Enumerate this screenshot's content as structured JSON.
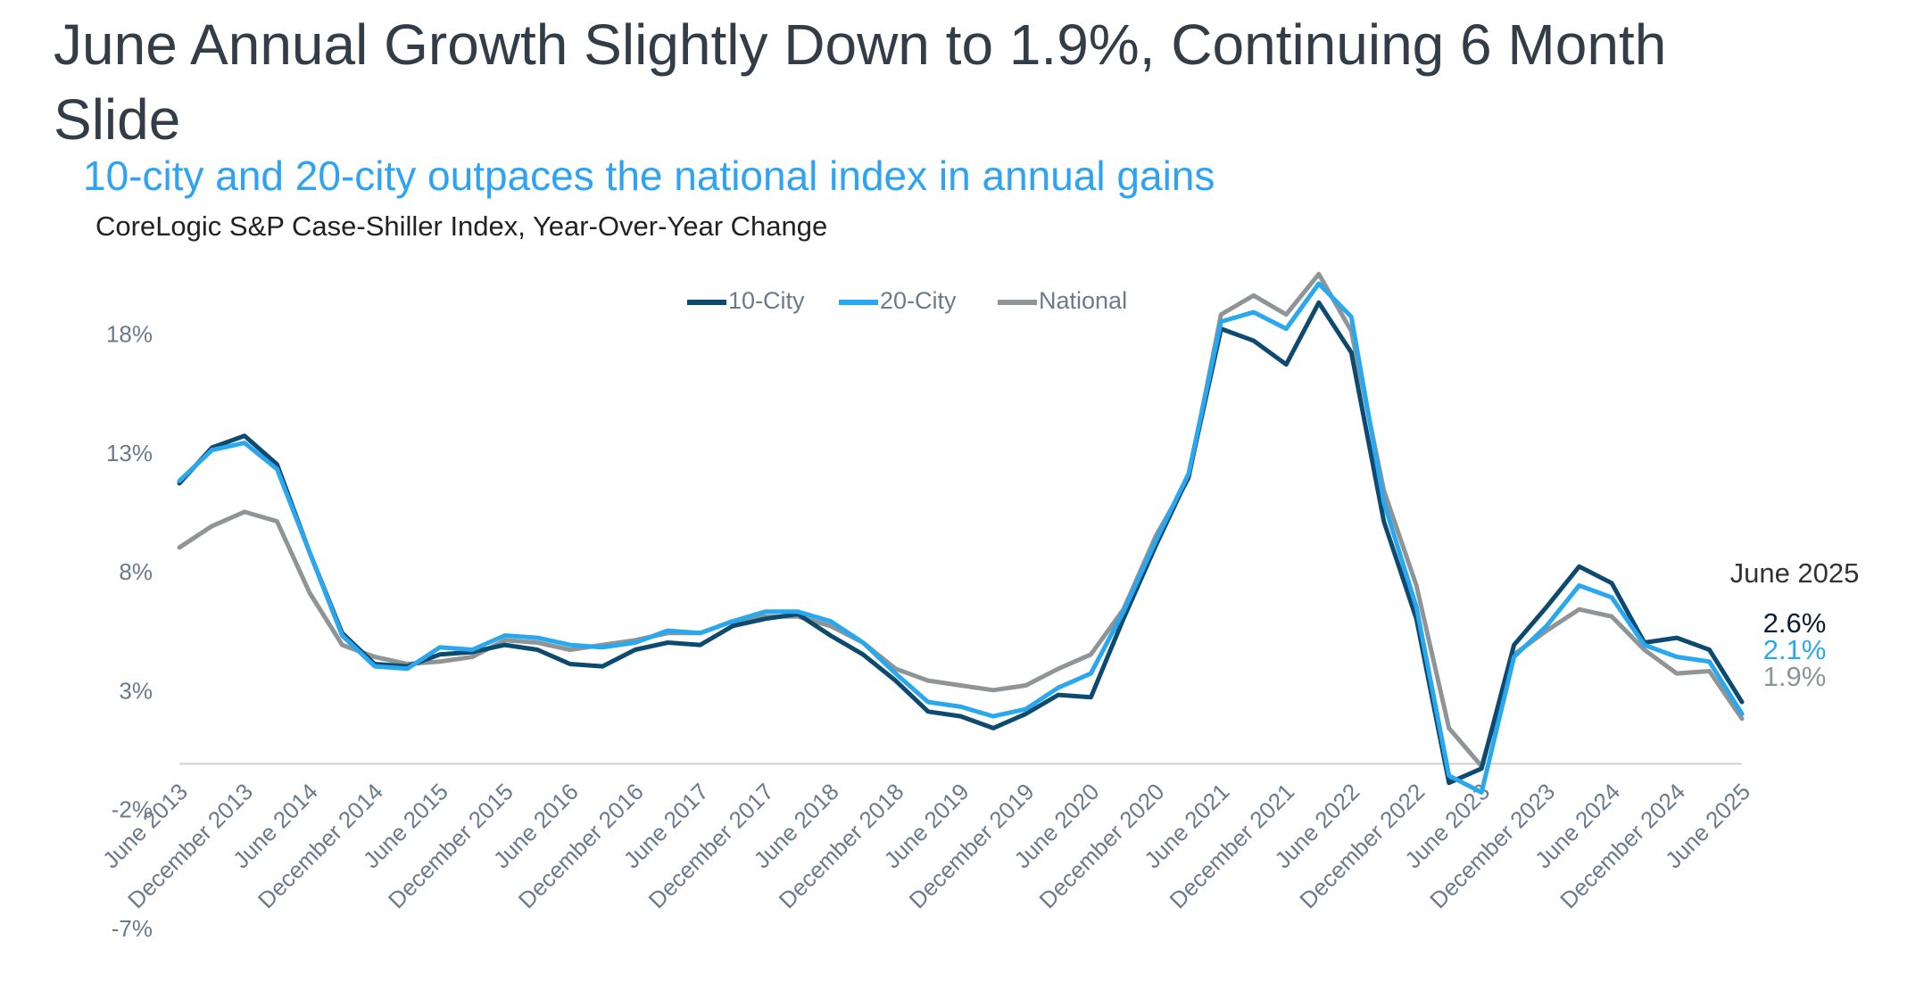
{
  "chart_data": {
    "type": "line",
    "title": "June Annual Growth Slightly Down to 1.9%, Continuing 6 Month Slide",
    "subtitle": "10-city and 20-city outpaces the national index in annual gains",
    "note": "CoreLogic S&P Case-Shiller Index, Year-Over-Year Change",
    "annotation": "June 2025",
    "categories": [
      "June 2013",
      null,
      "December 2013",
      null,
      "June 2014",
      null,
      "December 2014",
      null,
      "June 2015",
      null,
      "December 2015",
      null,
      "June 2016",
      null,
      "December 2016",
      null,
      "June 2017",
      null,
      "December 2017",
      null,
      "June 2018",
      null,
      "December 2018",
      null,
      "June 2019",
      null,
      "December 2019",
      null,
      "June 2020",
      null,
      "December 2020",
      null,
      "June 2021",
      null,
      "December 2021",
      null,
      "June 2022",
      null,
      "December 2022",
      null,
      "June 2023",
      null,
      "December 2023",
      null,
      "June 2024",
      null,
      "December 2024",
      null,
      "June 2025"
    ],
    "series": [
      {
        "name": "10-City",
        "color": "#0d4a70",
        "values": [
          11.8,
          13.3,
          13.8,
          12.6,
          8.9,
          5.5,
          4.2,
          4.1,
          4.6,
          4.7,
          5.0,
          4.8,
          4.2,
          4.1,
          4.8,
          5.1,
          5.0,
          5.8,
          6.1,
          6.3,
          5.4,
          4.6,
          3.5,
          2.2,
          2.0,
          1.5,
          2.1,
          2.9,
          2.8,
          6.1,
          9.2,
          12.1,
          18.3,
          17.8,
          16.8,
          19.4,
          17.3,
          10.2,
          6.1,
          -0.8,
          -0.2,
          5.0,
          6.6,
          8.3,
          7.6,
          5.1,
          5.3,
          4.8,
          2.6
        ],
        "value_labels": [
          null,
          null,
          null,
          null,
          null,
          null,
          null,
          null,
          null,
          null,
          null,
          null,
          null,
          null,
          null,
          null,
          null,
          null,
          null,
          null,
          null,
          null,
          null,
          null,
          null,
          null,
          null,
          null,
          null,
          null,
          null,
          null,
          null,
          null,
          null,
          null,
          null,
          null,
          null,
          null,
          null,
          null,
          null,
          null,
          null,
          null,
          null,
          null,
          "2.6%"
        ]
      },
      {
        "name": "20-City",
        "color": "#29a8ef",
        "values": [
          11.9,
          13.2,
          13.5,
          12.4,
          8.9,
          5.4,
          4.1,
          4.0,
          4.9,
          4.8,
          5.4,
          5.3,
          5.0,
          4.9,
          5.1,
          5.6,
          5.5,
          6.0,
          6.4,
          6.4,
          6.0,
          5.1,
          3.8,
          2.6,
          2.4,
          2.0,
          2.3,
          3.2,
          3.8,
          6.4,
          9.4,
          12.2,
          18.6,
          19.0,
          18.3,
          20.2,
          18.8,
          11.0,
          6.6,
          -0.5,
          -1.2,
          4.5,
          5.8,
          7.5,
          7.0,
          5.0,
          4.5,
          4.3,
          2.1
        ],
        "value_labels": [
          null,
          null,
          null,
          null,
          null,
          null,
          null,
          null,
          null,
          null,
          null,
          null,
          null,
          null,
          null,
          null,
          null,
          null,
          null,
          null,
          null,
          null,
          null,
          null,
          null,
          null,
          null,
          null,
          null,
          null,
          null,
          null,
          null,
          null,
          null,
          null,
          null,
          null,
          null,
          null,
          null,
          null,
          null,
          null,
          null,
          null,
          null,
          null,
          "2.1%"
        ]
      },
      {
        "name": "National",
        "color": "#8f9496",
        "values": [
          9.1,
          10.0,
          10.6,
          10.2,
          7.2,
          5.0,
          4.5,
          4.2,
          4.3,
          4.5,
          5.2,
          5.1,
          4.8,
          5.0,
          5.2,
          5.5,
          5.5,
          6.0,
          6.2,
          6.2,
          5.8,
          5.1,
          4.0,
          3.5,
          3.3,
          3.1,
          3.3,
          4.0,
          4.6,
          6.5,
          9.6,
          12.0,
          18.9,
          19.7,
          18.9,
          20.6,
          18.2,
          11.5,
          7.5,
          1.5,
          -0.1,
          4.6,
          5.6,
          6.5,
          6.2,
          4.8,
          3.8,
          3.9,
          1.9
        ],
        "value_labels": [
          null,
          null,
          null,
          null,
          null,
          null,
          null,
          null,
          null,
          null,
          null,
          null,
          null,
          null,
          null,
          null,
          null,
          null,
          null,
          null,
          null,
          null,
          null,
          null,
          null,
          null,
          null,
          null,
          null,
          null,
          null,
          null,
          null,
          null,
          null,
          null,
          null,
          null,
          null,
          null,
          null,
          null,
          null,
          null,
          null,
          null,
          null,
          null,
          "1.9%"
        ]
      }
    ],
    "ylim": [
      -7,
      22
    ],
    "yticks": [
      {
        "value": -7,
        "label": "-7%"
      },
      {
        "value": -2,
        "label": "-2%"
      },
      {
        "value": 3,
        "label": "3%"
      },
      {
        "value": 8,
        "label": "8%"
      },
      {
        "value": 13,
        "label": "13%"
      },
      {
        "value": 18,
        "label": "18%"
      }
    ],
    "grid": false,
    "legend": "top"
  }
}
